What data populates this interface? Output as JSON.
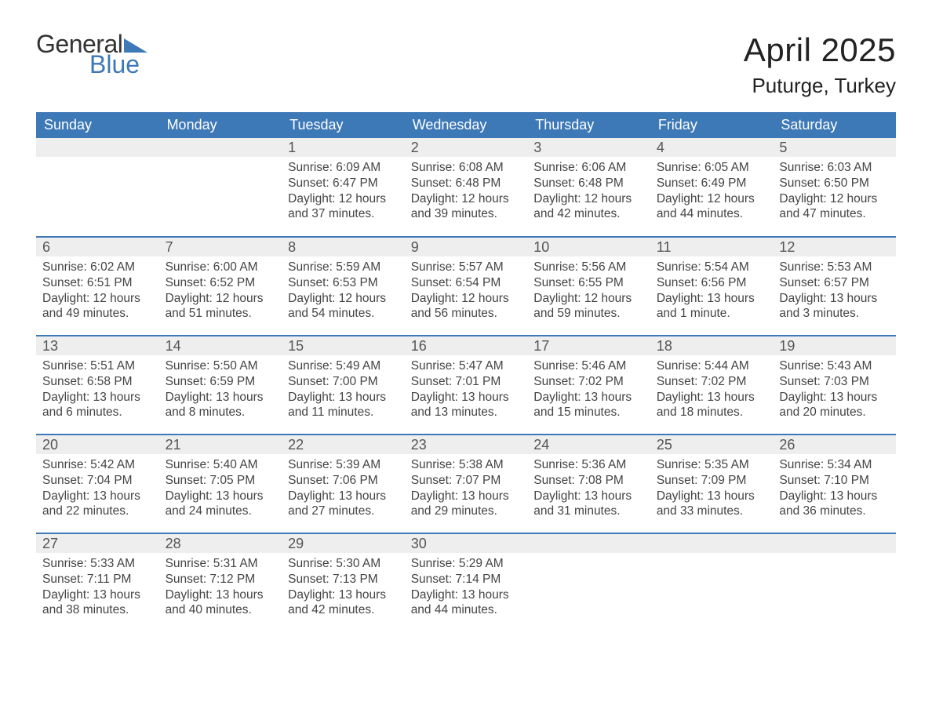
{
  "brand": {
    "word1": "General",
    "word2": "Blue"
  },
  "title": {
    "month": "April 2025",
    "location": "Puturge, Turkey"
  },
  "colors": {
    "brand_blue": "#3d78b7",
    "header_bg": "#3d78b7",
    "header_text": "#ffffff",
    "daynum_bg": "#eeeeee",
    "text": "#444444",
    "rule": "#3d78b7"
  },
  "typography": {
    "title_fontsize": 42,
    "location_fontsize": 26,
    "dayheader_fontsize": 18,
    "daynum_fontsize": 18,
    "body_fontsize": 15.5
  },
  "layout": {
    "cols": 7,
    "rows": 5,
    "week_start": "Sunday"
  },
  "day_headers": [
    "Sunday",
    "Monday",
    "Tuesday",
    "Wednesday",
    "Thursday",
    "Friday",
    "Saturday"
  ],
  "weeks": [
    [
      {
        "empty": true
      },
      {
        "empty": true
      },
      {
        "num": "1",
        "sunrise": "Sunrise: 6:09 AM",
        "sunset": "Sunset: 6:47 PM",
        "daylight1": "Daylight: 12 hours",
        "daylight2": "and 37 minutes."
      },
      {
        "num": "2",
        "sunrise": "Sunrise: 6:08 AM",
        "sunset": "Sunset: 6:48 PM",
        "daylight1": "Daylight: 12 hours",
        "daylight2": "and 39 minutes."
      },
      {
        "num": "3",
        "sunrise": "Sunrise: 6:06 AM",
        "sunset": "Sunset: 6:48 PM",
        "daylight1": "Daylight: 12 hours",
        "daylight2": "and 42 minutes."
      },
      {
        "num": "4",
        "sunrise": "Sunrise: 6:05 AM",
        "sunset": "Sunset: 6:49 PM",
        "daylight1": "Daylight: 12 hours",
        "daylight2": "and 44 minutes."
      },
      {
        "num": "5",
        "sunrise": "Sunrise: 6:03 AM",
        "sunset": "Sunset: 6:50 PM",
        "daylight1": "Daylight: 12 hours",
        "daylight2": "and 47 minutes."
      }
    ],
    [
      {
        "num": "6",
        "sunrise": "Sunrise: 6:02 AM",
        "sunset": "Sunset: 6:51 PM",
        "daylight1": "Daylight: 12 hours",
        "daylight2": "and 49 minutes."
      },
      {
        "num": "7",
        "sunrise": "Sunrise: 6:00 AM",
        "sunset": "Sunset: 6:52 PM",
        "daylight1": "Daylight: 12 hours",
        "daylight2": "and 51 minutes."
      },
      {
        "num": "8",
        "sunrise": "Sunrise: 5:59 AM",
        "sunset": "Sunset: 6:53 PM",
        "daylight1": "Daylight: 12 hours",
        "daylight2": "and 54 minutes."
      },
      {
        "num": "9",
        "sunrise": "Sunrise: 5:57 AM",
        "sunset": "Sunset: 6:54 PM",
        "daylight1": "Daylight: 12 hours",
        "daylight2": "and 56 minutes."
      },
      {
        "num": "10",
        "sunrise": "Sunrise: 5:56 AM",
        "sunset": "Sunset: 6:55 PM",
        "daylight1": "Daylight: 12 hours",
        "daylight2": "and 59 minutes."
      },
      {
        "num": "11",
        "sunrise": "Sunrise: 5:54 AM",
        "sunset": "Sunset: 6:56 PM",
        "daylight1": "Daylight: 13 hours",
        "daylight2": "and 1 minute."
      },
      {
        "num": "12",
        "sunrise": "Sunrise: 5:53 AM",
        "sunset": "Sunset: 6:57 PM",
        "daylight1": "Daylight: 13 hours",
        "daylight2": "and 3 minutes."
      }
    ],
    [
      {
        "num": "13",
        "sunrise": "Sunrise: 5:51 AM",
        "sunset": "Sunset: 6:58 PM",
        "daylight1": "Daylight: 13 hours",
        "daylight2": "and 6 minutes."
      },
      {
        "num": "14",
        "sunrise": "Sunrise: 5:50 AM",
        "sunset": "Sunset: 6:59 PM",
        "daylight1": "Daylight: 13 hours",
        "daylight2": "and 8 minutes."
      },
      {
        "num": "15",
        "sunrise": "Sunrise: 5:49 AM",
        "sunset": "Sunset: 7:00 PM",
        "daylight1": "Daylight: 13 hours",
        "daylight2": "and 11 minutes."
      },
      {
        "num": "16",
        "sunrise": "Sunrise: 5:47 AM",
        "sunset": "Sunset: 7:01 PM",
        "daylight1": "Daylight: 13 hours",
        "daylight2": "and 13 minutes."
      },
      {
        "num": "17",
        "sunrise": "Sunrise: 5:46 AM",
        "sunset": "Sunset: 7:02 PM",
        "daylight1": "Daylight: 13 hours",
        "daylight2": "and 15 minutes."
      },
      {
        "num": "18",
        "sunrise": "Sunrise: 5:44 AM",
        "sunset": "Sunset: 7:02 PM",
        "daylight1": "Daylight: 13 hours",
        "daylight2": "and 18 minutes."
      },
      {
        "num": "19",
        "sunrise": "Sunrise: 5:43 AM",
        "sunset": "Sunset: 7:03 PM",
        "daylight1": "Daylight: 13 hours",
        "daylight2": "and 20 minutes."
      }
    ],
    [
      {
        "num": "20",
        "sunrise": "Sunrise: 5:42 AM",
        "sunset": "Sunset: 7:04 PM",
        "daylight1": "Daylight: 13 hours",
        "daylight2": "and 22 minutes."
      },
      {
        "num": "21",
        "sunrise": "Sunrise: 5:40 AM",
        "sunset": "Sunset: 7:05 PM",
        "daylight1": "Daylight: 13 hours",
        "daylight2": "and 24 minutes."
      },
      {
        "num": "22",
        "sunrise": "Sunrise: 5:39 AM",
        "sunset": "Sunset: 7:06 PM",
        "daylight1": "Daylight: 13 hours",
        "daylight2": "and 27 minutes."
      },
      {
        "num": "23",
        "sunrise": "Sunrise: 5:38 AM",
        "sunset": "Sunset: 7:07 PM",
        "daylight1": "Daylight: 13 hours",
        "daylight2": "and 29 minutes."
      },
      {
        "num": "24",
        "sunrise": "Sunrise: 5:36 AM",
        "sunset": "Sunset: 7:08 PM",
        "daylight1": "Daylight: 13 hours",
        "daylight2": "and 31 minutes."
      },
      {
        "num": "25",
        "sunrise": "Sunrise: 5:35 AM",
        "sunset": "Sunset: 7:09 PM",
        "daylight1": "Daylight: 13 hours",
        "daylight2": "and 33 minutes."
      },
      {
        "num": "26",
        "sunrise": "Sunrise: 5:34 AM",
        "sunset": "Sunset: 7:10 PM",
        "daylight1": "Daylight: 13 hours",
        "daylight2": "and 36 minutes."
      }
    ],
    [
      {
        "num": "27",
        "sunrise": "Sunrise: 5:33 AM",
        "sunset": "Sunset: 7:11 PM",
        "daylight1": "Daylight: 13 hours",
        "daylight2": "and 38 minutes."
      },
      {
        "num": "28",
        "sunrise": "Sunrise: 5:31 AM",
        "sunset": "Sunset: 7:12 PM",
        "daylight1": "Daylight: 13 hours",
        "daylight2": "and 40 minutes."
      },
      {
        "num": "29",
        "sunrise": "Sunrise: 5:30 AM",
        "sunset": "Sunset: 7:13 PM",
        "daylight1": "Daylight: 13 hours",
        "daylight2": "and 42 minutes."
      },
      {
        "num": "30",
        "sunrise": "Sunrise: 5:29 AM",
        "sunset": "Sunset: 7:14 PM",
        "daylight1": "Daylight: 13 hours",
        "daylight2": "and 44 minutes."
      },
      {
        "empty": true
      },
      {
        "empty": true
      },
      {
        "empty": true
      }
    ]
  ]
}
